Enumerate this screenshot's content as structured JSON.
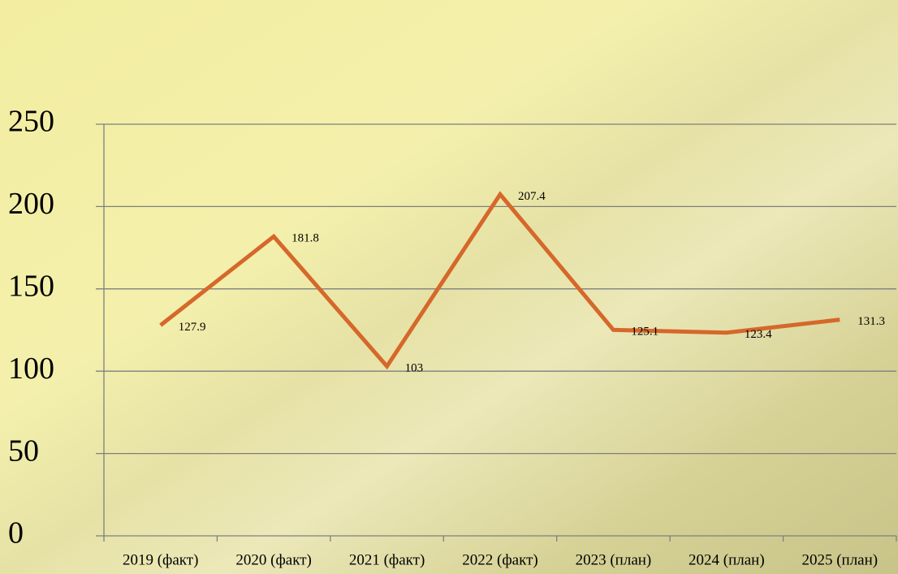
{
  "chart_data": {
    "type": "line",
    "categories": [
      "2019 (факт)",
      "2020 (факт)",
      "2021 (факт)",
      "2022 (факт)",
      "2023 (план)",
      "2024 (план)",
      "2025 (план)"
    ],
    "series": [
      {
        "color": "#d5682a",
        "values": [
          127.9,
          181.8,
          103,
          207.4,
          125.1,
          123.4,
          131.3
        ]
      }
    ],
    "ylim": [
      0,
      250
    ],
    "yticks": [
      0,
      50,
      100,
      150,
      200,
      250
    ],
    "grid": true
  }
}
